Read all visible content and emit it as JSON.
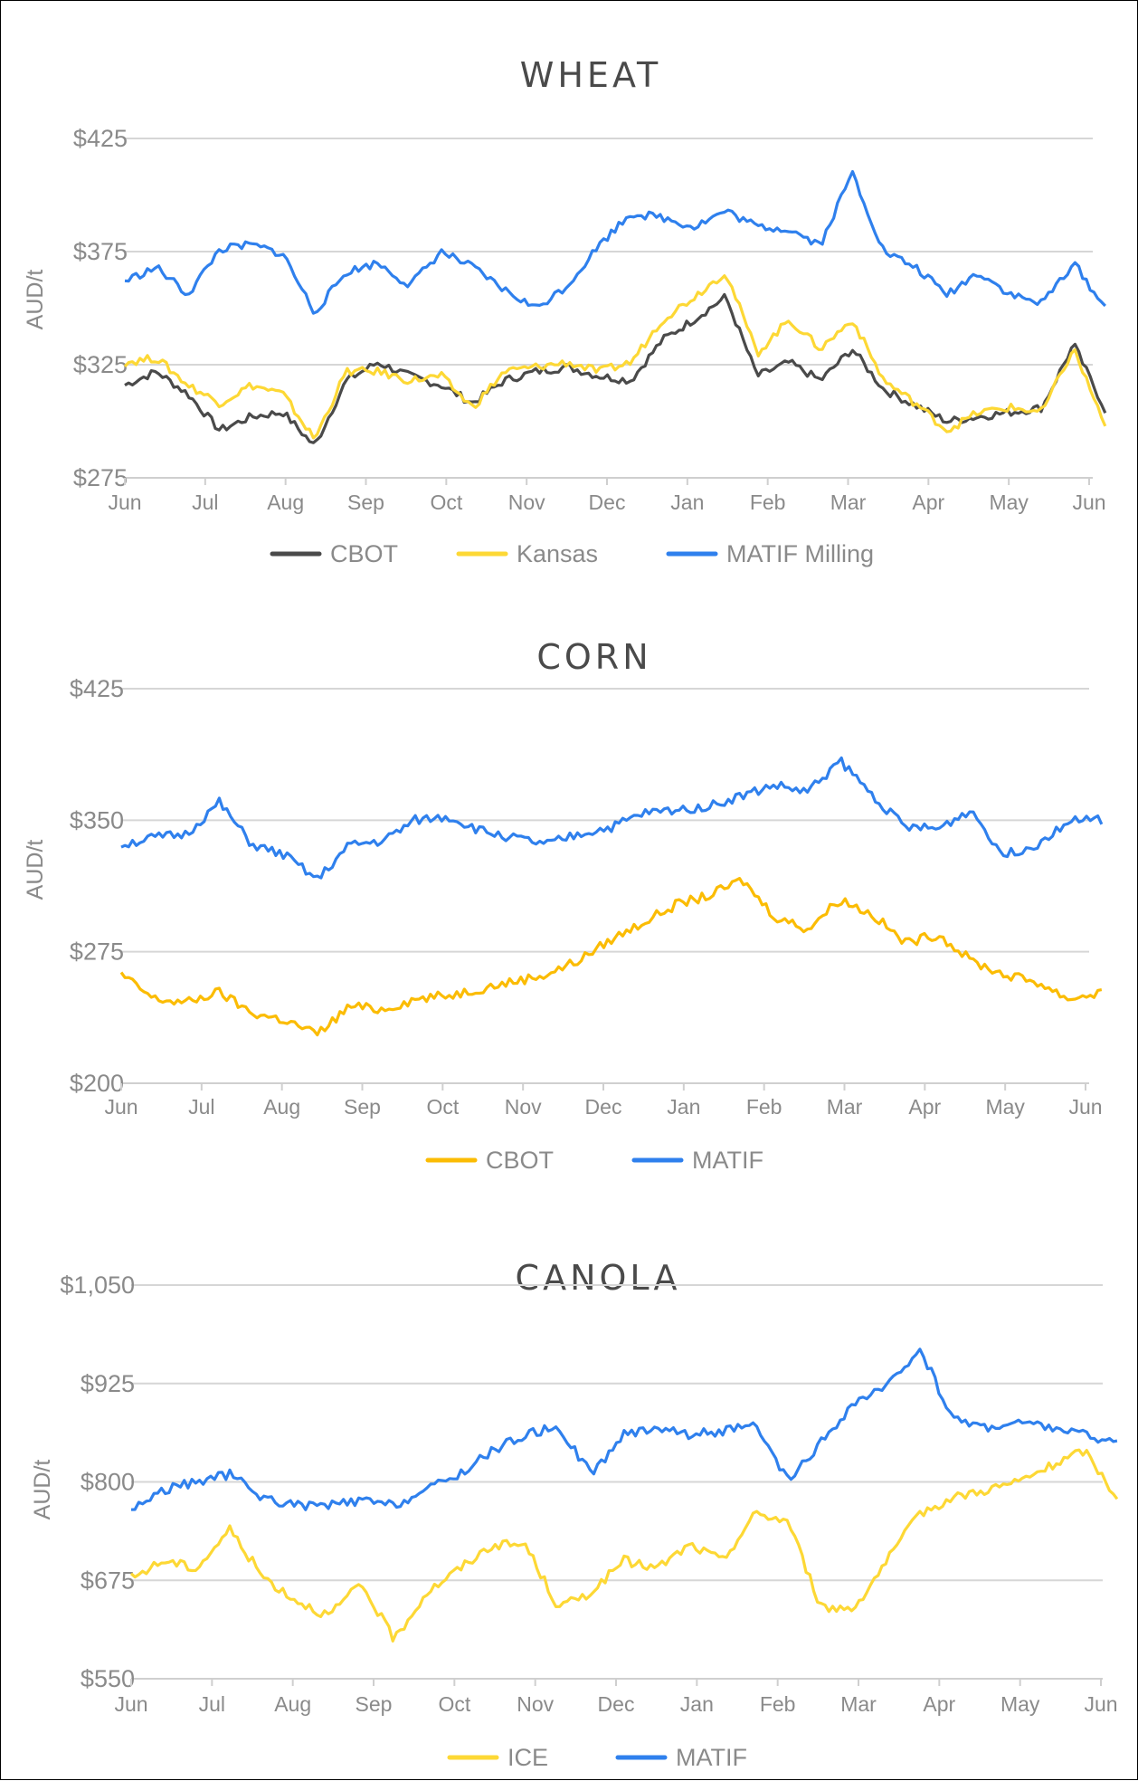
{
  "colors": {
    "cbot_wheat": "#4a4a4a",
    "kansas": "#fdd835",
    "matif_blue": "#2f80ed",
    "cbot_corn": "#fbbc04",
    "ice": "#fdd835"
  },
  "chart_data": [
    {
      "type": "line",
      "title": "WHEAT",
      "ylabel": "AUD/t",
      "xlabel": "",
      "ylim": [
        275,
        425
      ],
      "yticks": [
        "$425",
        "$375",
        "$325",
        "$275"
      ],
      "categories": [
        "Jun",
        "Jul",
        "Aug",
        "Sep",
        "Oct",
        "Nov",
        "Dec",
        "Jan",
        "Feb",
        "Mar",
        "Apr",
        "May",
        "Jun"
      ],
      "legend_position": "bottom",
      "grid": true,
      "series": [
        {
          "name": "CBOT",
          "values": [
            316,
            322,
            312,
            296,
            302,
            304,
            289,
            318,
            326,
            320,
            316,
            308,
            318,
            322,
            324,
            320,
            318,
            336,
            345,
            355,
            320,
            326,
            318,
            332,
            314,
            307,
            300,
            302,
            304,
            306,
            334,
            305
          ]
        },
        {
          "name": "Kansas",
          "values": [
            326,
            328,
            316,
            308,
            316,
            312,
            292,
            322,
            322,
            318,
            320,
            306,
            322,
            324,
            326,
            322,
            326,
            345,
            355,
            366,
            330,
            345,
            332,
            345,
            318,
            308,
            296,
            304,
            306,
            304,
            332,
            298
          ]
        },
        {
          "name": "MATIF Milling",
          "values": [
            362,
            368,
            356,
            376,
            378,
            374,
            348,
            366,
            370,
            360,
            375,
            368,
            358,
            350,
            360,
            378,
            392,
            390,
            386,
            393,
            386,
            385,
            378,
            410,
            375,
            368,
            356,
            366,
            356,
            352,
            370,
            350
          ]
        }
      ]
    },
    {
      "type": "line",
      "title": "CORN",
      "ylabel": "AUD/t",
      "xlabel": "",
      "ylim": [
        200,
        425
      ],
      "yticks": [
        "$425",
        "$350",
        "$275",
        "$200"
      ],
      "categories": [
        "Jun",
        "Jul",
        "Aug",
        "Sep",
        "Oct",
        "Nov",
        "Dec",
        "Jan",
        "Feb",
        "Mar",
        "Apr",
        "May",
        "Jun"
      ],
      "legend_position": "bottom",
      "grid": true,
      "series": [
        {
          "name": "CBOT",
          "values": [
            262,
            248,
            246,
            252,
            240,
            236,
            228,
            244,
            242,
            248,
            250,
            254,
            258,
            262,
            270,
            282,
            292,
            302,
            307,
            316,
            295,
            288,
            305,
            296,
            280,
            285,
            270,
            262,
            258,
            248,
            252
          ]
        },
        {
          "name": "MATIF",
          "values": [
            336,
            340,
            342,
            360,
            336,
            330,
            316,
            336,
            338,
            350,
            352,
            344,
            340,
            336,
            342,
            346,
            354,
            356,
            358,
            364,
            370,
            366,
            384,
            364,
            346,
            345,
            356,
            330,
            336,
            350,
            350
          ]
        }
      ]
    },
    {
      "type": "line",
      "title": "CANOLA",
      "ylabel": "AUD/t",
      "xlabel": "",
      "ylim": [
        550,
        1050
      ],
      "yticks": [
        "$1,050",
        "$925",
        "$800",
        "$675",
        "$550"
      ],
      "categories": [
        "Jun",
        "Jul",
        "Aug",
        "Sep",
        "Oct",
        "Nov",
        "Dec",
        "Jan",
        "Feb",
        "Mar",
        "Apr",
        "May",
        "Jun"
      ],
      "legend_position": "bottom",
      "grid": true,
      "series": [
        {
          "name": "ICE",
          "values": [
            678,
            700,
            690,
            740,
            680,
            650,
            630,
            670,
            600,
            660,
            690,
            720,
            720,
            640,
            660,
            700,
            690,
            720,
            700,
            760,
            750,
            640,
            640,
            700,
            760,
            780,
            790,
            800,
            820,
            840,
            780
          ]
        },
        {
          "name": "MATIF",
          "values": [
            765,
            790,
            800,
            810,
            780,
            770,
            770,
            776,
            770,
            790,
            810,
            840,
            860,
            870,
            810,
            860,
            870,
            860,
            865,
            870,
            800,
            850,
            900,
            920,
            970,
            880,
            870,
            875,
            870,
            860,
            850
          ]
        }
      ]
    }
  ],
  "wheat": {
    "title": "WHEAT",
    "ylabel": "AUD/t",
    "yticks": [
      "$425",
      "$375",
      "$325",
      "$275"
    ],
    "xticks": [
      "Jun",
      "Jul",
      "Aug",
      "Sep",
      "Oct",
      "Nov",
      "Dec",
      "Jan",
      "Feb",
      "Mar",
      "Apr",
      "May",
      "Jun"
    ],
    "legend": [
      "CBOT",
      "Kansas",
      "MATIF Milling"
    ]
  },
  "corn": {
    "title": "CORN",
    "ylabel": "AUD/t",
    "yticks": [
      "$425",
      "$350",
      "$275",
      "$200"
    ],
    "xticks": [
      "Jun",
      "Jul",
      "Aug",
      "Sep",
      "Oct",
      "Nov",
      "Dec",
      "Jan",
      "Feb",
      "Mar",
      "Apr",
      "May",
      "Jun"
    ],
    "legend": [
      "CBOT",
      "MATIF"
    ]
  },
  "canola": {
    "title": "CANOLA",
    "ylabel": "AUD/t",
    "yticks": [
      "$1,050",
      "$925",
      "$800",
      "$675",
      "$550"
    ],
    "xticks": [
      "Jun",
      "Jul",
      "Aug",
      "Sep",
      "Oct",
      "Nov",
      "Dec",
      "Jan",
      "Feb",
      "Mar",
      "Apr",
      "May",
      "Jun"
    ],
    "legend": [
      "ICE",
      "MATIF"
    ]
  }
}
